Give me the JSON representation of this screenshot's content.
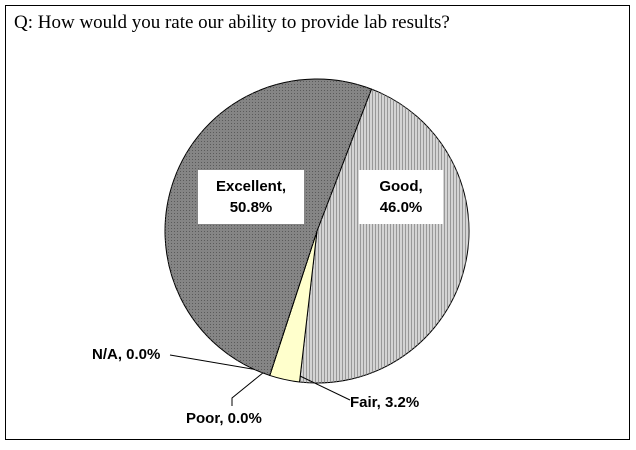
{
  "chart_data": {
    "type": "pie",
    "title": "Q: How would you rate our ability to provide lab results?",
    "labels": [
      "Good, 46.0%",
      "Fair, 3.2%",
      "Poor, 0.0%",
      "N/A, 0.0%",
      "Excellent, 50.8%"
    ],
    "values": [
      46.0,
      3.2,
      0.0,
      0.0,
      50.8
    ],
    "colors": [
      "#d4d4d4",
      "#ffffcc",
      "#ffffff",
      "#ffffff",
      "#858585"
    ]
  }
}
